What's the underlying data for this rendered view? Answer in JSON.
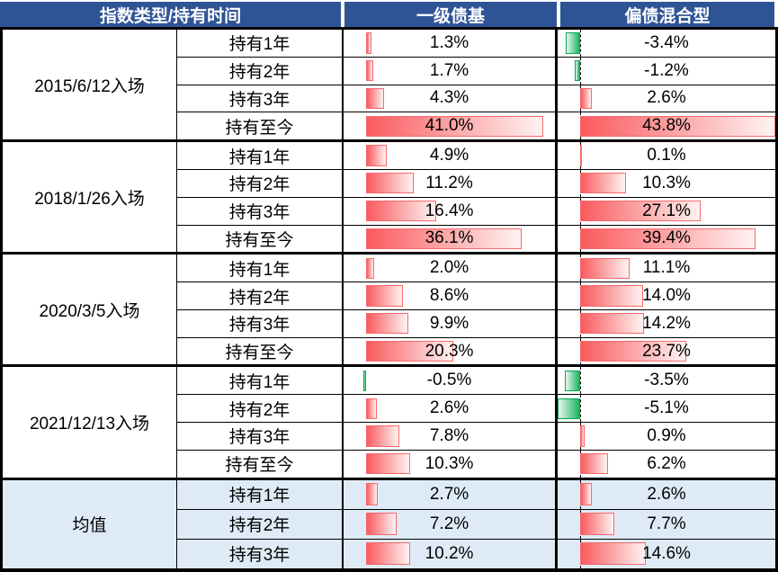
{
  "header": {
    "col1": "指数类型/持有时间",
    "col2": "一级债基",
    "col3": "偏债混合型"
  },
  "colors": {
    "header_bg": "#2F5496",
    "header_text": "#FFFFFF",
    "mean_row_bg": "#DEEBF7",
    "positive_bar": "#FA5A5E",
    "positive_bar_fade": "#FEF3F2",
    "positive_bar_border": "#F8696B",
    "negative_bar": "#1CB45F",
    "negative_bar_fade": "#EAF7F0",
    "negative_bar_border": "#00A650",
    "grid": "#000000"
  },
  "chart_data": {
    "type": "table",
    "title": "指数类型/持有时间 对比 一级债基 与 偏债混合型 收益率",
    "columns": [
      "指数类型/持有时间",
      "一级债基",
      "偏债混合型"
    ],
    "unit": "%",
    "bar_style": "in-cell gradient data bars, red = positive, green = negative, dashed zero axis in third column",
    "bar_axis": {
      "min": -5.1,
      "max": 43.8,
      "axis_offset_pct": 10.5
    },
    "groups": [
      {
        "entry": "2015/6/12入场",
        "highlight": false,
        "rows": [
          {
            "label": "持有1年",
            "values": [
              1.3,
              -3.4
            ]
          },
          {
            "label": "持有2年",
            "values": [
              1.7,
              -1.2
            ]
          },
          {
            "label": "持有3年",
            "values": [
              4.3,
              2.6
            ]
          },
          {
            "label": "持有至今",
            "values": [
              41.0,
              43.8
            ]
          }
        ]
      },
      {
        "entry": "2018/1/26入场",
        "highlight": false,
        "rows": [
          {
            "label": "持有1年",
            "values": [
              4.9,
              0.1
            ]
          },
          {
            "label": "持有2年",
            "values": [
              11.2,
              10.3
            ]
          },
          {
            "label": "持有3年",
            "values": [
              16.4,
              27.1
            ]
          },
          {
            "label": "持有至今",
            "values": [
              36.1,
              39.4
            ]
          }
        ]
      },
      {
        "entry": "2020/3/5入场",
        "highlight": false,
        "rows": [
          {
            "label": "持有1年",
            "values": [
              2.0,
              11.1
            ]
          },
          {
            "label": "持有2年",
            "values": [
              8.6,
              14.0
            ]
          },
          {
            "label": "持有3年",
            "values": [
              9.9,
              14.2
            ]
          },
          {
            "label": "持有至今",
            "values": [
              20.3,
              23.7
            ]
          }
        ]
      },
      {
        "entry": "2021/12/13入场",
        "highlight": false,
        "rows": [
          {
            "label": "持有1年",
            "values": [
              -0.5,
              -3.5
            ]
          },
          {
            "label": "持有2年",
            "values": [
              2.6,
              -5.1
            ]
          },
          {
            "label": "持有3年",
            "values": [
              7.8,
              0.9
            ]
          },
          {
            "label": "持有至今",
            "values": [
              10.3,
              6.2
            ]
          }
        ]
      },
      {
        "entry": "均值",
        "highlight": true,
        "rows": [
          {
            "label": "持有1年",
            "values": [
              2.7,
              2.6
            ]
          },
          {
            "label": "持有2年",
            "values": [
              7.2,
              7.7
            ]
          },
          {
            "label": "持有3年",
            "values": [
              10.2,
              14.6
            ]
          }
        ]
      }
    ]
  }
}
